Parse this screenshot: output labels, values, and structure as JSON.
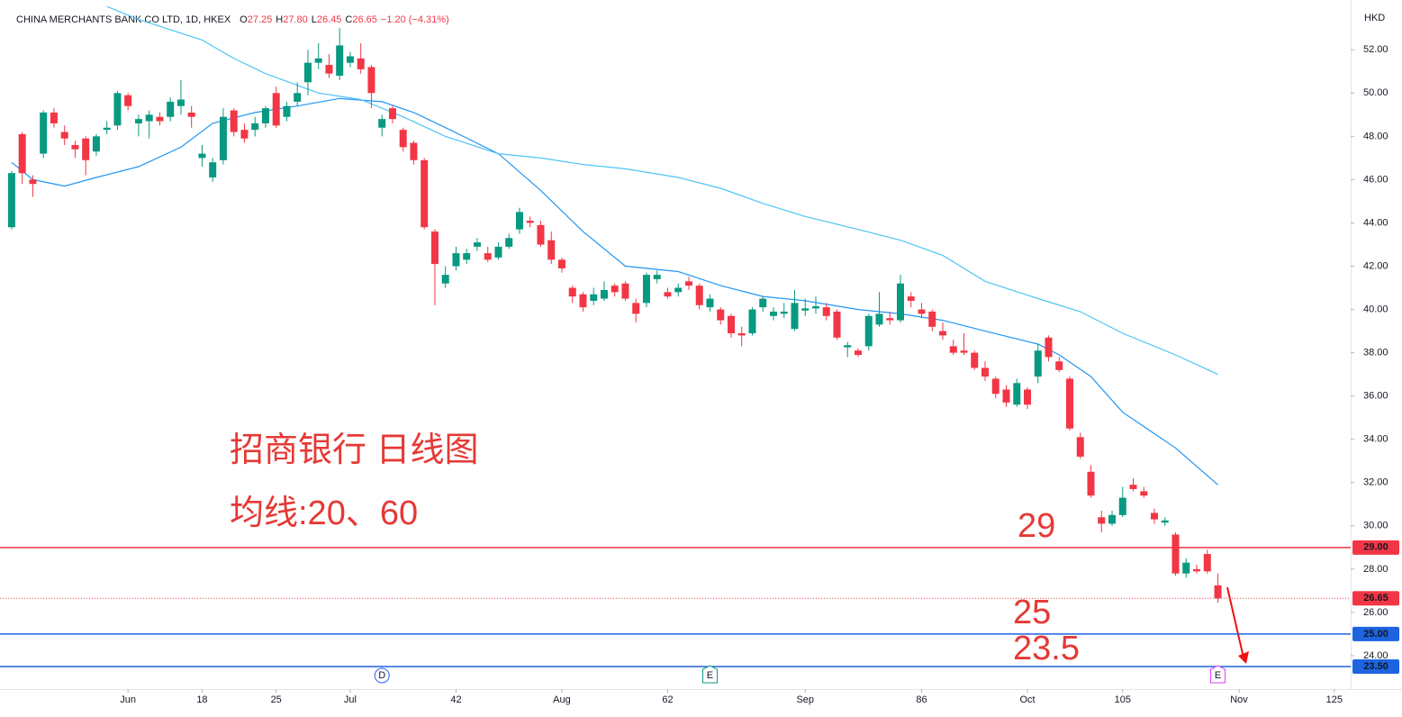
{
  "chart_data": {
    "type": "candlestick",
    "title": "CHINA MERCHANTS BANK CO LTD, 1D, HKEX",
    "ohlc_legend": [
      {
        "label": "O",
        "value": "27.25"
      },
      {
        "label": "H",
        "value": "27.80"
      },
      {
        "label": "L",
        "value": "26.45"
      },
      {
        "label": "C",
        "value": "26.65"
      }
    ],
    "change_label": "−1.20 (−4.31%)",
    "currency": "HKD",
    "annotations": [
      "招商银行 日线图",
      "均线:20、60"
    ],
    "up_color": "#089981",
    "down_color": "#f23645",
    "open": [
      43.8,
      48.1,
      46.0,
      47.2,
      49.1,
      48.2,
      47.6,
      47.9,
      47.3,
      48.3,
      48.5,
      49.9,
      48.6,
      48.7,
      48.9,
      48.9,
      49.4,
      49.1,
      47.0,
      46.1,
      46.9,
      49.2,
      48.3,
      48.3,
      48.6,
      50.0,
      48.9,
      49.6,
      50.5,
      51.4,
      51.3,
      50.8,
      51.4,
      51.6,
      51.2,
      48.4,
      49.3,
      48.3,
      47.7,
      46.9,
      43.6,
      41.2,
      42.0,
      42.3,
      42.9,
      42.6,
      42.4,
      42.9,
      43.7,
      44.1,
      43.9,
      43.2,
      42.3,
      41.0,
      40.7,
      40.4,
      40.5,
      41.1,
      41.2,
      40.3,
      40.3,
      41.4,
      40.8,
      40.8,
      41.3,
      41.1,
      40.1,
      40.0,
      39.7,
      38.9,
      38.9,
      40.1,
      39.7,
      39.8,
      39.1,
      39.95,
      40.05,
      40.1,
      39.9,
      38.25,
      38.1,
      38.3,
      39.3,
      39.6,
      39.5,
      40.6,
      40.0,
      39.9,
      39.0,
      38.3,
      38.1,
      38.0,
      37.3,
      36.8,
      36.3,
      35.6,
      36.3,
      36.9,
      38.7,
      37.6,
      36.8,
      34.1,
      32.5,
      30.4,
      30.1,
      30.5,
      31.9,
      31.6,
      30.6,
      30.15,
      29.6,
      27.8,
      28.0,
      28.7,
      27.25
    ],
    "high": [
      46.4,
      48.2,
      46.2,
      49.2,
      49.3,
      48.5,
      47.8,
      48.0,
      48.1,
      48.7,
      50.1,
      50.0,
      49.0,
      49.2,
      49.1,
      49.8,
      50.6,
      49.4,
      47.6,
      47.0,
      49.3,
      49.3,
      48.6,
      48.9,
      49.4,
      50.3,
      49.6,
      50.5,
      52.0,
      52.3,
      51.8,
      53.0,
      51.9,
      52.3,
      51.3,
      49.0,
      49.4,
      48.4,
      47.8,
      47.0,
      43.7,
      42.0,
      42.9,
      42.8,
      43.3,
      42.9,
      43.1,
      43.5,
      44.7,
      44.3,
      44.1,
      43.6,
      42.4,
      41.1,
      40.8,
      41.0,
      41.3,
      41.2,
      41.3,
      40.5,
      41.7,
      41.8,
      41.0,
      41.2,
      41.5,
      41.2,
      40.7,
      40.1,
      39.8,
      39.2,
      40.1,
      40.6,
      40.1,
      40.3,
      40.9,
      40.5,
      40.6,
      40.3,
      40.0,
      38.5,
      38.2,
      39.8,
      40.8,
      39.9,
      41.6,
      40.8,
      40.3,
      40.0,
      39.4,
      38.6,
      38.9,
      38.1,
      37.6,
      36.9,
      36.5,
      36.8,
      36.4,
      38.4,
      38.8,
      37.8,
      36.9,
      34.3,
      32.8,
      30.7,
      30.7,
      31.8,
      32.2,
      31.8,
      30.8,
      30.4,
      29.7,
      28.5,
      28.2,
      28.9,
      27.8
    ],
    "low": [
      43.7,
      45.8,
      45.2,
      47.0,
      48.4,
      47.6,
      47.0,
      46.2,
      47.1,
      48.1,
      48.3,
      49.2,
      48.0,
      47.9,
      48.5,
      48.7,
      49.0,
      48.4,
      46.6,
      45.9,
      46.7,
      48.0,
      47.7,
      48.0,
      48.4,
      48.4,
      48.7,
      49.4,
      49.9,
      51.1,
      50.7,
      50.6,
      51.2,
      50.9,
      49.3,
      48.0,
      48.6,
      47.3,
      46.7,
      43.7,
      40.2,
      41.0,
      41.8,
      42.1,
      42.7,
      42.2,
      42.3,
      42.8,
      43.5,
      43.8,
      42.9,
      42.1,
      41.7,
      40.3,
      39.9,
      40.2,
      40.4,
      40.6,
      40.4,
      39.4,
      40.1,
      41.2,
      40.5,
      40.6,
      40.9,
      40.0,
      39.9,
      39.3,
      38.7,
      38.3,
      38.8,
      39.9,
      39.5,
      39.6,
      39.0,
      39.7,
      39.8,
      39.5,
      38.6,
      37.8,
      37.8,
      38.1,
      39.2,
      39.3,
      39.4,
      40.1,
      39.6,
      39.0,
      38.6,
      37.9,
      37.9,
      37.2,
      36.7,
      35.9,
      35.5,
      35.5,
      35.4,
      36.6,
      37.6,
      37.1,
      34.4,
      33.1,
      31.3,
      29.7,
      30.0,
      30.4,
      31.6,
      31.3,
      30.1,
      30.0,
      27.7,
      27.6,
      27.8,
      27.8,
      26.45
    ],
    "close": [
      46.3,
      46.3,
      45.8,
      49.1,
      48.6,
      47.9,
      47.4,
      46.9,
      48.0,
      48.4,
      50.0,
      49.4,
      48.8,
      49.0,
      48.7,
      49.6,
      49.7,
      48.9,
      47.2,
      46.8,
      48.9,
      48.2,
      47.9,
      48.6,
      49.3,
      48.5,
      49.4,
      50.0,
      51.4,
      51.6,
      50.9,
      52.2,
      51.7,
      51.1,
      50.0,
      48.8,
      48.8,
      47.5,
      46.9,
      43.8,
      42.1,
      41.6,
      42.6,
      42.6,
      43.1,
      42.3,
      42.9,
      43.3,
      44.5,
      44.0,
      43.0,
      42.3,
      41.9,
      40.6,
      40.1,
      40.7,
      40.9,
      40.8,
      40.5,
      39.8,
      41.6,
      41.6,
      40.6,
      41.0,
      41.1,
      40.2,
      40.5,
      39.5,
      38.9,
      38.8,
      40.0,
      40.5,
      39.9,
      39.9,
      40.3,
      40.05,
      40.15,
      39.7,
      38.7,
      38.35,
      37.9,
      39.7,
      39.8,
      39.5,
      41.2,
      40.4,
      39.8,
      39.2,
      38.8,
      38.0,
      38.0,
      37.3,
      36.9,
      36.1,
      35.7,
      36.6,
      35.6,
      38.1,
      37.8,
      37.2,
      34.5,
      33.2,
      31.4,
      30.1,
      30.5,
      31.3,
      31.7,
      31.4,
      30.3,
      30.25,
      27.8,
      28.3,
      27.9,
      27.9,
      26.65
    ],
    "moving_averages": [
      {
        "color": "#2196f3",
        "x": [
          0,
          2,
          5,
          8,
          12,
          16,
          19,
          23,
          27,
          31,
          35,
          38,
          41,
          46,
          50,
          54,
          58,
          63,
          67,
          71,
          75,
          80,
          84,
          88,
          92,
          97,
          99,
          102,
          105,
          110,
          114
        ],
        "values": [
          46.8,
          46.0,
          45.7,
          46.1,
          46.6,
          47.5,
          48.6,
          49.1,
          49.4,
          49.75,
          49.6,
          49.1,
          48.4,
          47.2,
          45.5,
          43.6,
          42.0,
          41.75,
          41.1,
          40.6,
          40.4,
          40.0,
          39.8,
          39.5,
          39.0,
          38.4,
          37.9,
          36.9,
          35.25,
          33.6,
          31.9
        ]
      },
      {
        "color": "#4fc3f7",
        "x": [
          9,
          12,
          18,
          21,
          24,
          29,
          33,
          37,
          41,
          46,
          50,
          54,
          58,
          63,
          67,
          71,
          75,
          80,
          84,
          88,
          92,
          97,
          101,
          105,
          110,
          114
        ],
        "values": [
          54.0,
          53.4,
          52.45,
          51.6,
          50.9,
          50.0,
          49.7,
          48.9,
          48.0,
          47.2,
          47.0,
          46.7,
          46.5,
          46.1,
          45.6,
          44.9,
          44.3,
          43.7,
          43.2,
          42.5,
          41.3,
          40.5,
          39.9,
          38.9,
          37.9,
          37.0
        ]
      }
    ],
    "price_lines": [
      {
        "value": 29,
        "label": "29.00",
        "note": "29",
        "color": "#f23645"
      },
      {
        "value": 25,
        "label": "25.00",
        "note": "25",
        "color": "#1e63e0"
      },
      {
        "value": 23.5,
        "label": "23.50",
        "note": "23.5",
        "color": "#1e63e0"
      }
    ],
    "last_price": {
      "value": 26.65,
      "label": "26.65",
      "color": "#f23645"
    },
    "events": [
      {
        "label": "D",
        "x": 35,
        "color": "#2962ff"
      },
      {
        "label": "E",
        "x": 66,
        "color": "#089981"
      },
      {
        "label": "E",
        "x": 114,
        "color": "#e040fb"
      }
    ],
    "xlim": [
      -1.1,
      126.55
    ],
    "ylim": [
      22.5,
      54.3
    ],
    "xticks": [
      {
        "value": 11,
        "label": "Jun"
      },
      18,
      25,
      {
        "value": 32,
        "label": "Jul"
      },
      42,
      {
        "value": 52,
        "label": "Aug"
      },
      62,
      {
        "value": 75,
        "label": "Sep"
      },
      86,
      {
        "value": 96,
        "label": "Oct"
      },
      105,
      {
        "value": 116,
        "label": "Nov"
      },
      125
    ],
    "yticks": [
      {
        "value": 24,
        "label": "24.00"
      },
      {
        "value": 26,
        "label": "26.00"
      },
      {
        "value": 28,
        "label": "28.00"
      },
      {
        "value": 30,
        "label": "30.00"
      },
      {
        "value": 32,
        "label": "32.00"
      },
      {
        "value": 34,
        "label": "34.00"
      },
      {
        "value": 36,
        "label": "36.00"
      },
      {
        "value": 38,
        "label": "38.00"
      },
      {
        "value": 40,
        "label": "40.00"
      },
      {
        "value": 42,
        "label": "42.00"
      },
      {
        "value": 44,
        "label": "44.00"
      },
      {
        "value": 46,
        "label": "46.00"
      },
      {
        "value": 48,
        "label": "48.00"
      },
      {
        "value": 50,
        "label": "50.00"
      },
      {
        "value": 52,
        "label": "52.00"
      }
    ],
    "grid": false
  }
}
